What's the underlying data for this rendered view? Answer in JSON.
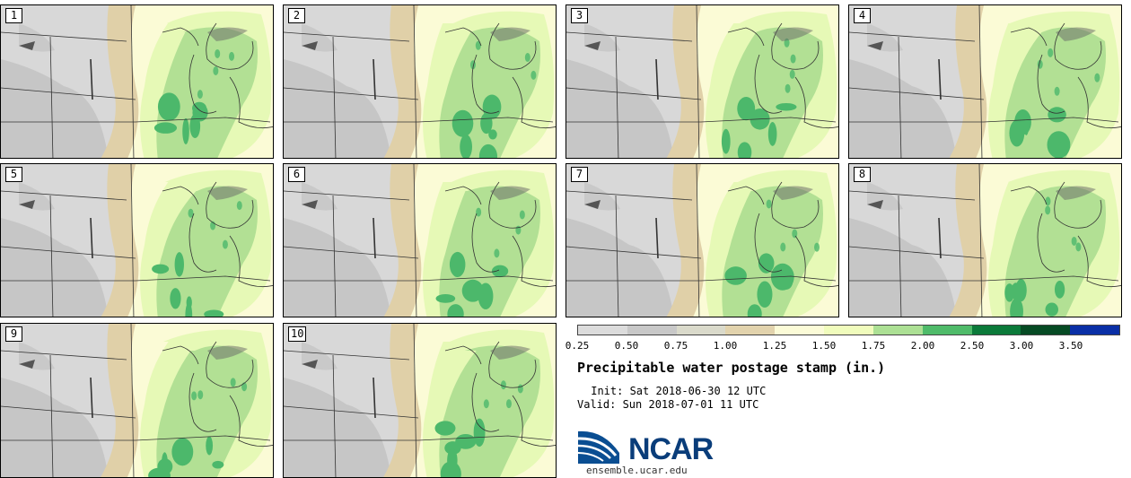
{
  "figure_title": "Precipitable water postage stamp (in.)",
  "init_text": " Init: Sat 2018-06-30 12 UTC",
  "valid_text": "Valid: Sun 2018-07-01 11 UTC",
  "logo": {
    "name": "NCAR",
    "url": "ensemble.ucar.edu"
  },
  "panels": [
    {
      "member": "1"
    },
    {
      "member": "2"
    },
    {
      "member": "3"
    },
    {
      "member": "4"
    },
    {
      "member": "5"
    },
    {
      "member": "6"
    },
    {
      "member": "7"
    },
    {
      "member": "8"
    },
    {
      "member": "9"
    },
    {
      "member": "10"
    }
  ],
  "colorbar": {
    "units": "in.",
    "tick_labels": [
      "0.25",
      "0.50",
      "0.75",
      "1.00",
      "1.25",
      "1.50",
      "1.75",
      "2.00",
      "2.50",
      "3.00",
      "3.50"
    ],
    "colors": [
      "#dcdcdc",
      "#c8c8c8",
      "#dadacb",
      "#e2d3ad",
      "#fbfbd7",
      "#f0fcbc",
      "#ace094",
      "#4fbb6a",
      "#0b7a3a",
      "#064b24",
      "#0a2fa6"
    ]
  },
  "legend_colors": {
    "light_gray": "#d8d8d8",
    "gray": "#c6c6c6",
    "tan": "#e0d0a8",
    "pale_yellow": "#fbfbd6",
    "light_green": "#e6f9b6",
    "green": "#a8dc8e",
    "dark_green": "#4cb86b"
  }
}
